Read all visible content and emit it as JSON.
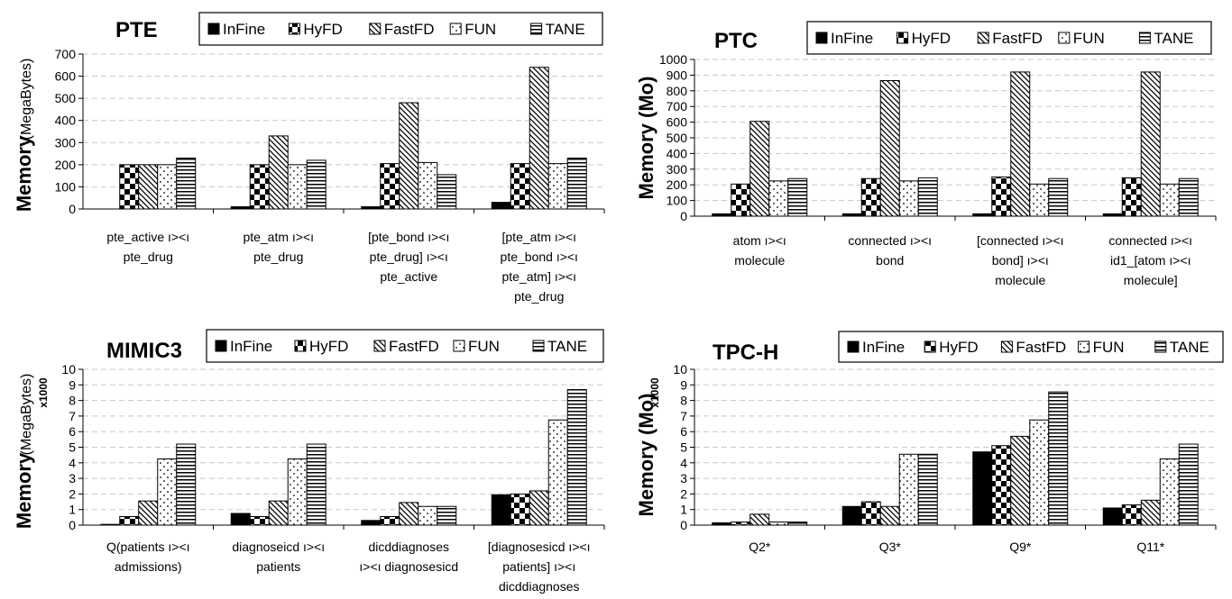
{
  "series_names": [
    "InFine",
    "HyFD",
    "FastFD",
    "FUN",
    "TANE"
  ],
  "chart_data": [
    {
      "type": "bar",
      "title": "PTE",
      "ylabel_main": "Memory",
      "ylabel_sub": "(MegaBytes)",
      "ymultiplier": "",
      "ylim": [
        0,
        700
      ],
      "yticks": [
        0,
        100,
        200,
        300,
        400,
        500,
        600,
        700
      ],
      "categories": [
        [
          "pte_active ı><ı",
          "pte_drug"
        ],
        [
          "pte_atm ı><ı",
          "pte_drug"
        ],
        [
          "[pte_bond ı><ı",
          "pte_drug] ı><ı",
          "pte_active"
        ],
        [
          "[pte_atm ı><ı",
          "pte_bond ı><ı",
          "pte_atm] ı><ı",
          "pte_drug"
        ]
      ],
      "series": [
        {
          "name": "InFine",
          "values": [
            0,
            10,
            10,
            30
          ]
        },
        {
          "name": "HyFD",
          "values": [
            200,
            200,
            205,
            205
          ]
        },
        {
          "name": "FastFD",
          "values": [
            200,
            330,
            480,
            640
          ]
        },
        {
          "name": "FUN",
          "values": [
            200,
            200,
            210,
            205
          ]
        },
        {
          "name": "TANE",
          "values": [
            230,
            220,
            155,
            230
          ]
        }
      ]
    },
    {
      "type": "bar",
      "title": "PTC",
      "ylabel_main": "Memory (Mo)",
      "ylabel_sub": "",
      "ymultiplier": "",
      "ylim": [
        0,
        1000
      ],
      "yticks": [
        0,
        100,
        200,
        300,
        400,
        500,
        600,
        700,
        800,
        900,
        1000
      ],
      "categories": [
        [
          "atom ı><ı",
          "molecule"
        ],
        [
          "connected ı><ı",
          "bond"
        ],
        [
          "[connected ı><ı",
          "bond] ı><ı",
          "molecule"
        ],
        [
          "connected ı><ı",
          "id1_[atom ı><ı",
          "molecule]"
        ]
      ],
      "series": [
        {
          "name": "InFine",
          "values": [
            15,
            15,
            15,
            15
          ]
        },
        {
          "name": "HyFD",
          "values": [
            205,
            240,
            250,
            245
          ]
        },
        {
          "name": "FastFD",
          "values": [
            605,
            865,
            920,
            920
          ]
        },
        {
          "name": "FUN",
          "values": [
            225,
            225,
            205,
            205
          ]
        },
        {
          "name": "TANE",
          "values": [
            240,
            245,
            240,
            240
          ]
        }
      ]
    },
    {
      "type": "bar",
      "title": "MIMIC3",
      "ylabel_main": "Memory",
      "ylabel_sub": "(MegaBytes)",
      "ymultiplier": "x1000",
      "ylim": [
        0,
        10
      ],
      "yticks": [
        0,
        1,
        2,
        3,
        4,
        5,
        6,
        7,
        8,
        9,
        10
      ],
      "categories": [
        [
          "Q(patients ı><ı",
          "admissions)"
        ],
        [
          "diagnoseicd ı><ı",
          "patients"
        ],
        [
          "dicddiagnoses",
          "ı><ı diagnosesicd"
        ],
        [
          "[diagnosesicd ı><ı",
          "patients] ı><ı",
          "dicddiagnoses"
        ]
      ],
      "series": [
        {
          "name": "InFine",
          "values": [
            0.05,
            0.75,
            0.3,
            1.95
          ]
        },
        {
          "name": "HyFD",
          "values": [
            0.55,
            0.55,
            0.55,
            2.0
          ]
        },
        {
          "name": "FastFD",
          "values": [
            1.55,
            1.55,
            1.45,
            2.2
          ]
        },
        {
          "name": "FUN",
          "values": [
            4.25,
            4.25,
            1.2,
            6.75
          ]
        },
        {
          "name": "TANE",
          "values": [
            5.2,
            5.2,
            1.2,
            8.7
          ]
        }
      ]
    },
    {
      "type": "bar",
      "title": "TPC-H",
      "ylabel_main": "Memory (Mo)",
      "ylabel_sub": "",
      "ymultiplier": "x1000",
      "ylim": [
        0,
        10
      ],
      "yticks": [
        0,
        1,
        2,
        3,
        4,
        5,
        6,
        7,
        8,
        9,
        10
      ],
      "categories": [
        [
          "Q2*"
        ],
        [
          "Q3*"
        ],
        [
          "Q9*"
        ],
        [
          "Q11*"
        ]
      ],
      "series": [
        {
          "name": "InFine",
          "values": [
            0.15,
            1.2,
            4.7,
            1.1
          ]
        },
        {
          "name": "HyFD",
          "values": [
            0.2,
            1.5,
            5.1,
            1.3
          ]
        },
        {
          "name": "FastFD",
          "values": [
            0.7,
            1.2,
            5.7,
            1.6
          ]
        },
        {
          "name": "FUN",
          "values": [
            0.2,
            4.55,
            6.75,
            4.25
          ]
        },
        {
          "name": "TANE",
          "values": [
            0.2,
            4.55,
            8.55,
            5.2
          ]
        }
      ]
    }
  ]
}
